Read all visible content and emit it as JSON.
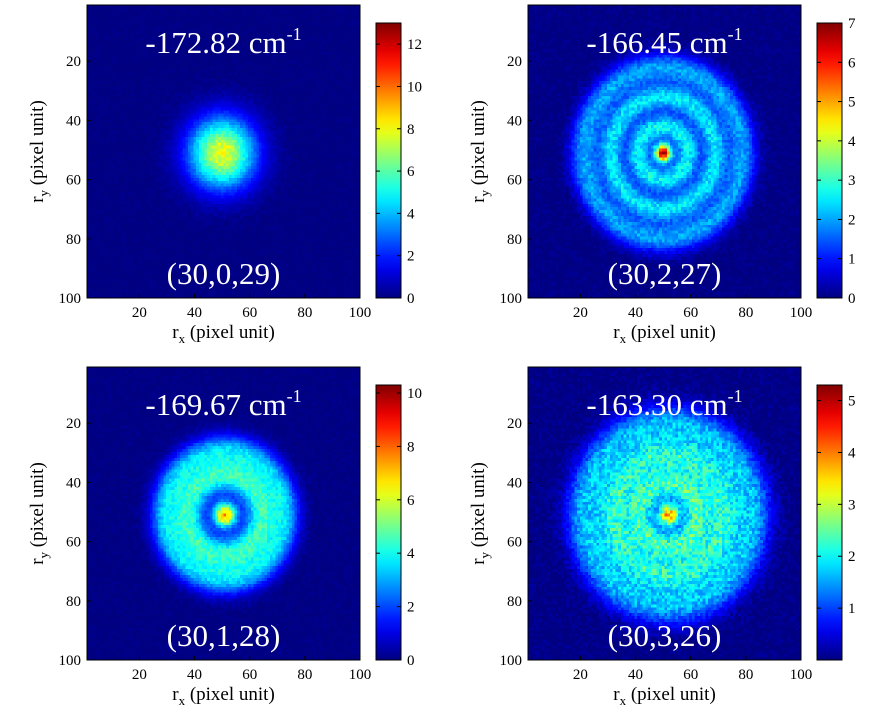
{
  "chart_data": [
    {
      "type": "heatmap",
      "title": "-172.82 cm-1",
      "energy": "-172.82",
      "energy_unit": "cm",
      "energy_exp": "-1",
      "state_label": "(30,0,29)",
      "xlabel_main": "r",
      "xlabel_sub": "x",
      "xlabel_rest": " (pixel unit)",
      "ylabel_main": "r",
      "ylabel_sub": "y",
      "ylabel_rest": " (pixel unit)",
      "xlim": [
        1,
        100
      ],
      "ylim": [
        1,
        100
      ],
      "x_ticks": [
        "20",
        "40",
        "60",
        "80",
        "100"
      ],
      "y_ticks": [
        "20",
        "40",
        "60",
        "80",
        "100"
      ],
      "colorbar": {
        "min": 0,
        "max": 13,
        "ticks": [
          "0",
          "2",
          "4",
          "6",
          "8",
          "10",
          "12"
        ]
      },
      "pattern": {
        "center": [
          50,
          51
        ],
        "peak": 11,
        "components": [
          {
            "kind": "gaussian_disk",
            "amplitude": 8,
            "sigma": 8.5
          }
        ]
      }
    },
    {
      "type": "heatmap",
      "title": "-166.45 cm-1",
      "energy": "-166.45",
      "energy_unit": "cm",
      "energy_exp": "-1",
      "state_label": "(30,2,27)",
      "xlabel_main": "r",
      "xlabel_sub": "x",
      "xlabel_rest": " (pixel unit)",
      "ylabel_main": "r",
      "ylabel_sub": "y",
      "ylabel_rest": " (pixel unit)",
      "xlim": [
        1,
        100
      ],
      "ylim": [
        1,
        100
      ],
      "x_ticks": [
        "20",
        "40",
        "60",
        "80",
        "100"
      ],
      "y_ticks": [
        "20",
        "40",
        "60",
        "80",
        "100"
      ],
      "colorbar": {
        "min": 0,
        "max": 7,
        "ticks": [
          "0",
          "1",
          "2",
          "3",
          "4",
          "5",
          "6",
          "7"
        ]
      },
      "pattern": {
        "center": [
          50,
          51
        ],
        "peak": 6.8,
        "components": [
          {
            "kind": "gaussian_disk",
            "amplitude": 6.5,
            "sigma": 2.2
          },
          {
            "kind": "ring",
            "amplitude": 2.6,
            "radius": 9,
            "width": 3.2
          },
          {
            "kind": "ring",
            "amplitude": 2.4,
            "radius": 19,
            "width": 3.2
          },
          {
            "kind": "ring",
            "amplitude": 2.0,
            "radius": 29,
            "width": 3.8
          }
        ]
      }
    },
    {
      "type": "heatmap",
      "title": "-169.67 cm-1",
      "energy": "-169.67",
      "energy_unit": "cm",
      "energy_exp": "-1",
      "state_label": "(30,1,28)",
      "xlabel_main": "r",
      "xlabel_sub": "x",
      "xlabel_rest": " (pixel unit)",
      "ylabel_main": "r",
      "ylabel_sub": "y",
      "ylabel_rest": " (pixel unit)",
      "xlim": [
        1,
        100
      ],
      "ylim": [
        1,
        100
      ],
      "x_ticks": [
        "20",
        "40",
        "60",
        "80",
        "100"
      ],
      "y_ticks": [
        "20",
        "40",
        "60",
        "80",
        "100"
      ],
      "colorbar": {
        "min": 0,
        "max": 10.3,
        "ticks": [
          "0",
          "2",
          "4",
          "6",
          "8",
          "10"
        ]
      },
      "pattern": {
        "center": [
          51,
          51
        ],
        "peak": 9.6,
        "components": [
          {
            "kind": "gaussian_disk",
            "amplitude": 7.5,
            "sigma": 3.0
          },
          {
            "kind": "ring",
            "amplitude": 4.2,
            "radius": 13,
            "width": 4.2
          },
          {
            "kind": "ring",
            "amplitude": 3.3,
            "radius": 22,
            "width": 4.0
          }
        ]
      }
    },
    {
      "type": "heatmap",
      "title": "-163.30 cm-1",
      "energy": "-163.30",
      "energy_unit": "cm",
      "energy_exp": "-1",
      "state_label": "(30,3,26)",
      "xlabel_main": "r",
      "xlabel_sub": "x",
      "xlabel_rest": " (pixel unit)",
      "ylabel_main": "r",
      "ylabel_sub": "y",
      "ylabel_rest": " (pixel unit)",
      "xlim": [
        1,
        100
      ],
      "ylim": [
        1,
        100
      ],
      "x_ticks": [
        "20",
        "40",
        "60",
        "80",
        "100"
      ],
      "y_ticks": [
        "20",
        "40",
        "60",
        "80",
        "100"
      ],
      "colorbar": {
        "min": 0,
        "max": 5.3,
        "ticks": [
          "1",
          "2",
          "3",
          "4",
          "5"
        ]
      },
      "pattern": {
        "center": [
          52,
          51
        ],
        "peak": 5.2,
        "components": [
          {
            "kind": "gaussian_disk",
            "amplitude": 3.8,
            "sigma": 2.6
          },
          {
            "kind": "ring",
            "amplitude": 2.2,
            "radius": 10,
            "width": 4.0
          },
          {
            "kind": "ring",
            "amplitude": 2.0,
            "radius": 20,
            "width": 4.5
          },
          {
            "kind": "ring",
            "amplitude": 1.6,
            "radius": 31,
            "width": 5.0
          }
        ]
      }
    }
  ]
}
